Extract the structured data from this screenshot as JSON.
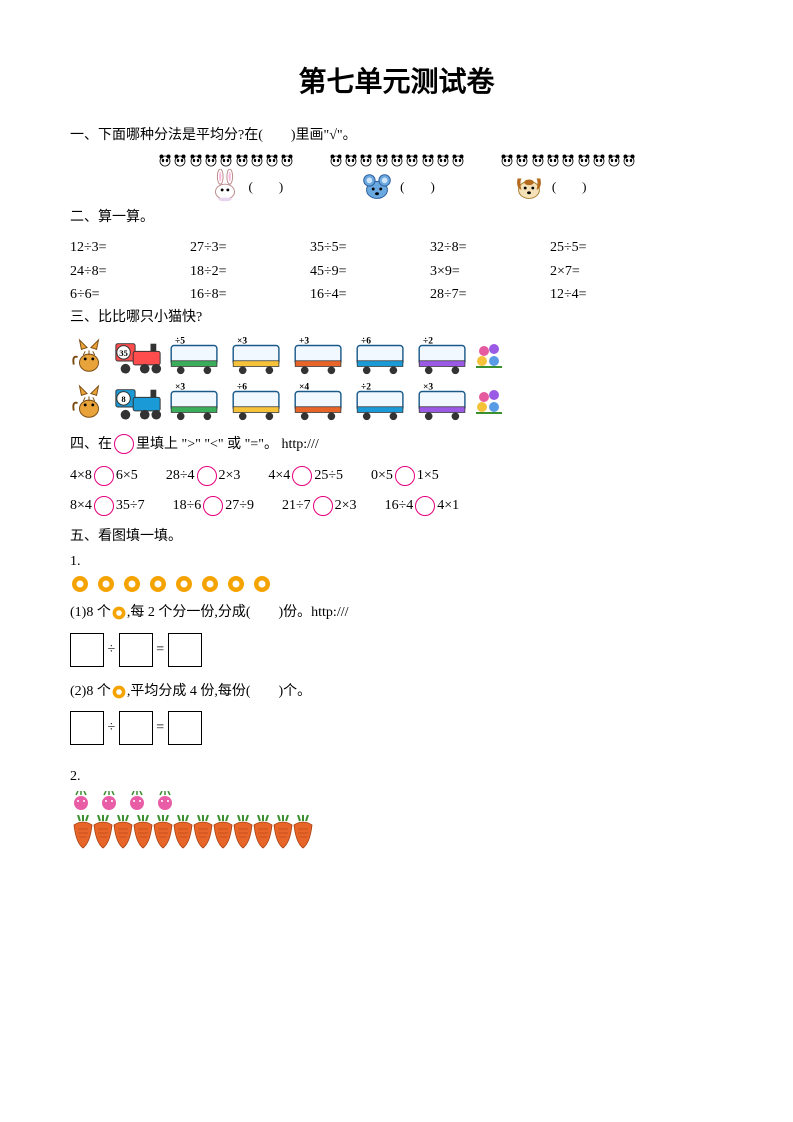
{
  "title": "第七单元测试卷",
  "q1": {
    "prompt": "一、下面哪种分法是平均分?在(　　)里画\"√\"。",
    "groups": [
      {
        "pandas": [
          2,
          3,
          4
        ],
        "animal": "rabbit"
      },
      {
        "pandas": [
          3,
          3,
          3
        ],
        "animal": "mouse"
      },
      {
        "pandas": [
          2,
          3,
          4
        ],
        "animal": "dog"
      }
    ],
    "paren": "(　　)"
  },
  "q2": {
    "prompt": "二、算一算。",
    "rows": [
      [
        "12÷3=",
        "27÷3=",
        "35÷5=",
        "32÷8=",
        "25÷5="
      ],
      [
        "24÷8=",
        "18÷2=",
        "45÷9=",
        "3×9=",
        "2×7="
      ],
      [
        "6÷6=",
        "16÷8=",
        "16÷4=",
        "28÷7=",
        "12÷4="
      ]
    ]
  },
  "q3": {
    "prompt": "三、比比哪只小猫快?",
    "rows": [
      {
        "start": "35",
        "ops": [
          "÷5",
          "×3",
          "+3",
          "÷6",
          "÷2"
        ],
        "loco_color": "#ff4d4d"
      },
      {
        "start": "8",
        "ops": [
          "×3",
          "÷6",
          "×4",
          "÷2",
          "×3"
        ],
        "loco_color": "#1a9bd8"
      }
    ]
  },
  "q4": {
    "prompt": "四、在",
    "prompt_tail": "里填上 \">\" \"<\" 或 \"=\"。  http:///",
    "rows": [
      [
        {
          "l": "4×8",
          "r": "6×5"
        },
        {
          "l": "28÷4",
          "r": "2×3"
        },
        {
          "l": "4×4",
          "r": "25÷5"
        },
        {
          "l": "0×5",
          "r": "1×5"
        }
      ],
      [
        {
          "l": "8×4",
          "r": "35÷7"
        },
        {
          "l": "18÷6",
          "r": "27÷9"
        },
        {
          "l": "21÷7",
          "r": "2×3"
        },
        {
          "l": "16÷4",
          "r": "4×1"
        }
      ]
    ],
    "circle_color": "#e6007e"
  },
  "q5": {
    "prompt": "五、看图填一填。",
    "p1": {
      "num": "1.",
      "donut_count": 8,
      "donut_outer": "#f5a300",
      "line1_a": "(1)8 个",
      "line1_b": ",每 2 个分一份,分成(　　)份。http:///",
      "line2_a": "(2)8 个",
      "line2_b": ",平均分成 4 份,每份(　　)个。",
      "divide": "÷",
      "equals": "="
    },
    "p2": {
      "num": "2.",
      "radish_count": 4,
      "carrot_count": 12,
      "carrot_color": "#e8652a",
      "carrot_leaf": "#3a8f2e",
      "radish_color": "#e95da6"
    }
  }
}
